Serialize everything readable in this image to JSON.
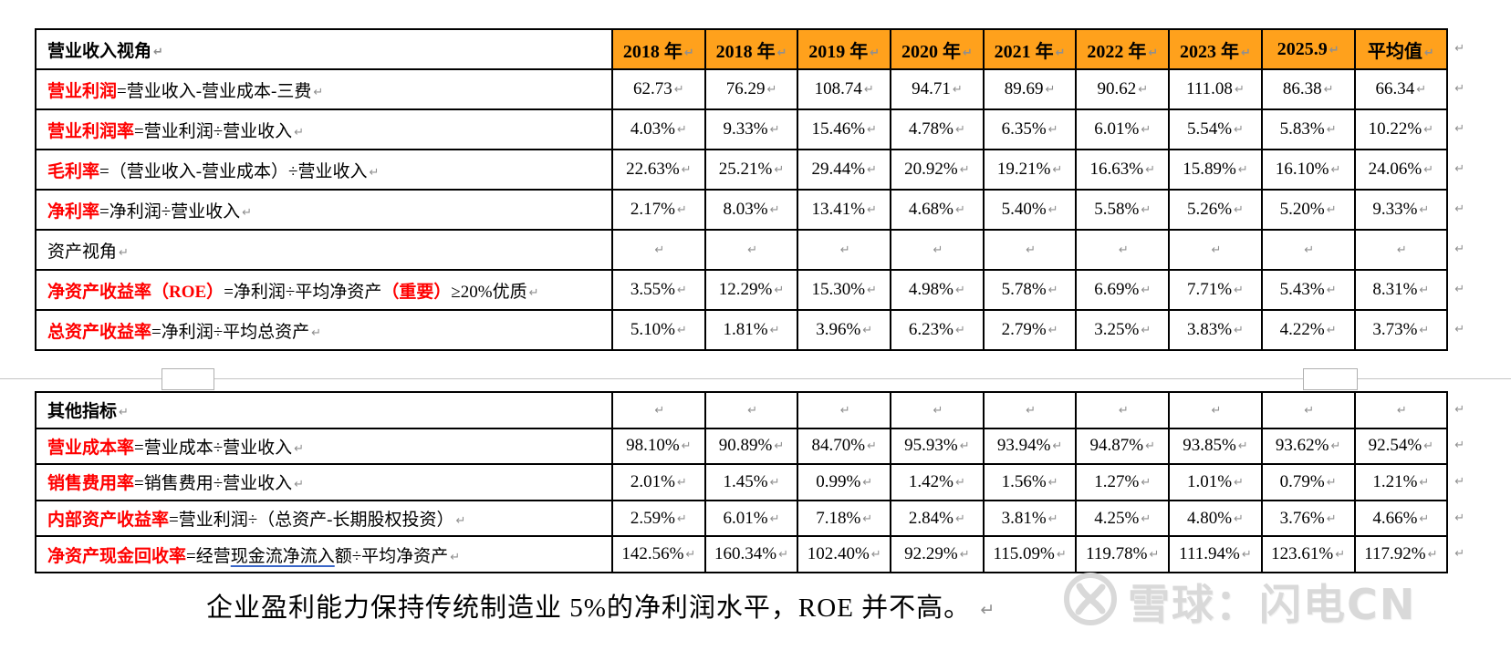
{
  "marks": {
    "pilcrow": "↵"
  },
  "colors": {
    "header_bg": "#FFA11C",
    "label_red": "#FF0000",
    "underline_blue": "#3A66C8",
    "mark_gray": "#8f8f8f",
    "watermark_gray": "#d9d9d9"
  },
  "table1": {
    "title_cell": "营业收入视角",
    "year_columns": [
      "2018 年",
      "2018 年",
      "2019 年",
      "2020 年",
      "2021 年",
      "2022 年",
      "2023 年",
      "2025.9",
      "平均值"
    ],
    "rows": [
      {
        "name": "operating-profit",
        "segments": [
          {
            "text": "营业利润",
            "style": "red"
          },
          {
            "text": "=营业收入-营业成本-三费",
            "style": "plain"
          }
        ],
        "values": [
          "62.73",
          "76.29",
          "108.74",
          "94.71",
          "89.69",
          "90.62",
          "111.08",
          "86.38",
          "66.34"
        ]
      },
      {
        "name": "operating-profit-margin",
        "segments": [
          {
            "text": "营业利润率",
            "style": "red"
          },
          {
            "text": "=营业利润÷营业收入",
            "style": "plain"
          }
        ],
        "values": [
          "4.03%",
          "9.33%",
          "15.46%",
          "4.78%",
          "6.35%",
          "6.01%",
          "5.54%",
          "5.83%",
          "10.22%"
        ]
      },
      {
        "name": "gross-margin",
        "segments": [
          {
            "text": "毛利率",
            "style": "red"
          },
          {
            "text": "=（营业收入-营业成本）÷营业收入",
            "style": "plain"
          }
        ],
        "values": [
          "22.63%",
          "25.21%",
          "29.44%",
          "20.92%",
          "19.21%",
          "16.63%",
          "15.89%",
          "16.10%",
          "24.06%"
        ]
      },
      {
        "name": "net-margin",
        "segments": [
          {
            "text": "净利率",
            "style": "red"
          },
          {
            "text": "=净利润÷营业收入",
            "style": "plain"
          }
        ],
        "values": [
          "2.17%",
          "8.03%",
          "13.41%",
          "4.68%",
          "5.40%",
          "5.58%",
          "5.26%",
          "5.20%",
          "9.33%"
        ]
      },
      {
        "name": "asset-perspective-section",
        "segments": [
          {
            "text": "资产视角",
            "style": "plain"
          }
        ],
        "values": [
          "",
          "",
          "",
          "",
          "",
          "",
          "",
          "",
          ""
        ]
      },
      {
        "name": "roe",
        "segments": [
          {
            "text": "净资产收益率（ROE）",
            "style": "red"
          },
          {
            "text": "=净利润÷平均净资产",
            "style": "plain"
          },
          {
            "text": "（重要）",
            "style": "red"
          },
          {
            "text": "≥20%优质",
            "style": "plain"
          }
        ],
        "values": [
          "3.55%",
          "12.29%",
          "15.30%",
          "4.98%",
          "5.78%",
          "6.69%",
          "7.71%",
          "5.43%",
          "8.31%"
        ]
      },
      {
        "name": "total-asset-return",
        "segments": [
          {
            "text": "总资产收益率",
            "style": "red"
          },
          {
            "text": "=净利润÷平均总资产",
            "style": "plain"
          }
        ],
        "values": [
          "5.10%",
          "1.81%",
          "3.96%",
          "6.23%",
          "2.79%",
          "3.25%",
          "3.83%",
          "4.22%",
          "3.73%"
        ]
      }
    ]
  },
  "table2": {
    "rows": [
      {
        "name": "other-indicators-section",
        "segments": [
          {
            "text": "其他指标",
            "style": "bold"
          }
        ],
        "values": [
          "",
          "",
          "",
          "",
          "",
          "",
          "",
          "",
          ""
        ]
      },
      {
        "name": "operating-cost-ratio",
        "segments": [
          {
            "text": "营业成本率",
            "style": "red"
          },
          {
            "text": "=营业成本÷营业收入",
            "style": "plain"
          }
        ],
        "values": [
          "98.10%",
          "90.89%",
          "84.70%",
          "95.93%",
          "93.94%",
          "94.87%",
          "93.85%",
          "93.62%",
          "92.54%"
        ]
      },
      {
        "name": "selling-expense-ratio",
        "segments": [
          {
            "text": "销售费用率",
            "style": "red"
          },
          {
            "text": "=销售费用÷营业收入",
            "style": "plain"
          }
        ],
        "values": [
          "2.01%",
          "1.45%",
          "0.99%",
          "1.42%",
          "1.56%",
          "1.27%",
          "1.01%",
          "0.79%",
          "1.21%"
        ]
      },
      {
        "name": "internal-asset-return",
        "segments": [
          {
            "text": "内部资产收益率",
            "style": "red"
          },
          {
            "text": "=营业利润÷（总资产-长期股权投资）",
            "style": "plain"
          }
        ],
        "values": [
          "2.59%",
          "6.01%",
          "7.18%",
          "2.84%",
          "3.81%",
          "4.25%",
          "4.80%",
          "3.76%",
          "4.66%"
        ]
      },
      {
        "name": "net-asset-cash-recovery",
        "segments": [
          {
            "text": "净资产现金回收率",
            "style": "red"
          },
          {
            "text": "=经营",
            "style": "plain"
          },
          {
            "text": "现金流净流入",
            "style": "underline"
          },
          {
            "text": "额÷平均净资产",
            "style": "plain"
          }
        ],
        "values": [
          "142.56%",
          "160.34%",
          "102.40%",
          "92.29%",
          "115.09%",
          "119.78%",
          "111.94%",
          "123.61%",
          "117.92%"
        ]
      }
    ]
  },
  "footer": {
    "text": "企业盈利能力保持传统制造业 5%的净利润水平，ROE 并不高。"
  },
  "watermark": {
    "text": "雪球：闪电CN"
  }
}
